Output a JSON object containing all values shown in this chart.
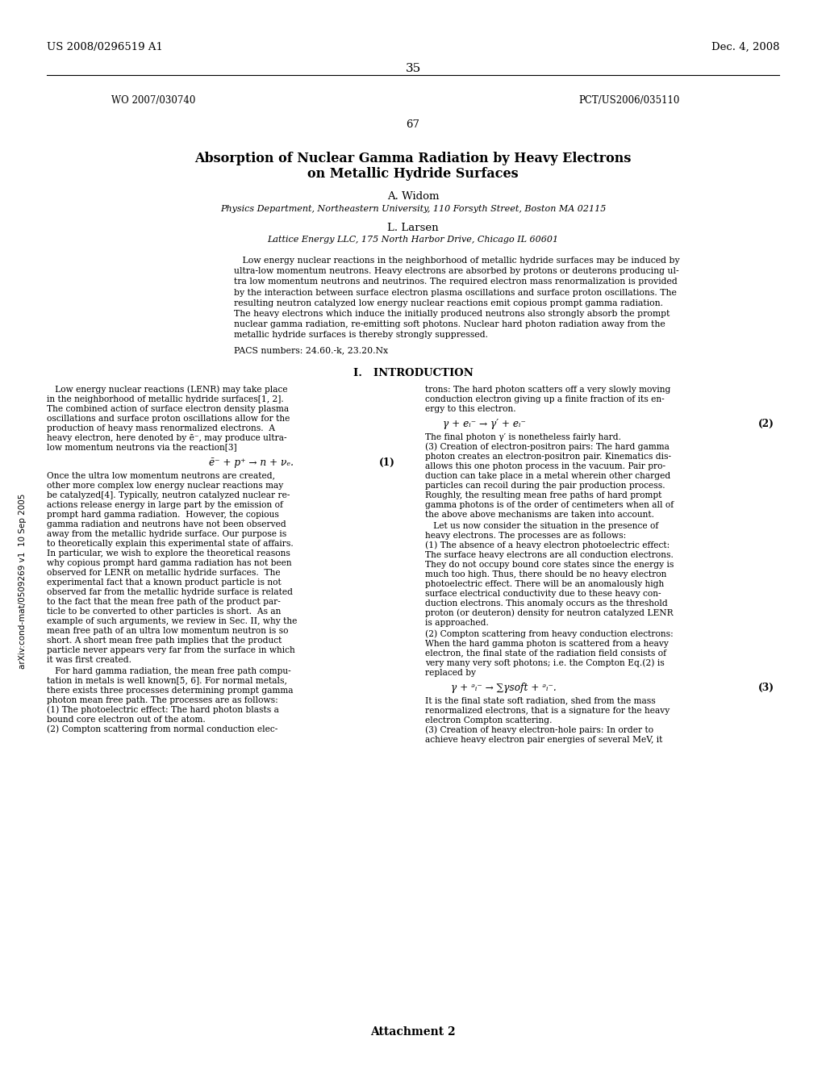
{
  "bg": "#ffffff",
  "header_left": "US 2008/0296519 A1",
  "header_right": "Dec. 4, 2008",
  "page_num_35": "35",
  "wo_left": "WO 2007/030740",
  "pct_right": "PCT/US2006/035110",
  "page_num_67": "67",
  "title_line1": "Absorption of Nuclear Gamma Radiation by Heavy Electrons",
  "title_line2": "on Metallic Hydride Surfaces",
  "author1": "A. Widom",
  "affil1": "Physics Department, Northeastern University, 110 Forsyth Street, Boston MA 02115",
  "author2": "L. Larsen",
  "affil2": "Lattice Energy LLC, 175 North Harbor Drive, Chicago IL 60601",
  "abstract_indent": "   Low energy nuclear reactions in the neighborhood of metallic hydride surfaces may be induced by\nultra-low momentum neutrons. Heavy electrons are absorbed by protons or deuterons producing ul-\ntra low momentum neutrons and neutrinos. The required electron mass renormalization is provided\nby the interaction between surface electron plasma oscillations and surface proton oscillations. The\nresulting neutron catalyzed low energy nuclear reactions emit copious prompt gamma radiation.\nThe heavy electrons which induce the initially produced neutrons also strongly absorb the prompt\nnuclear gamma radiation, re-emitting soft photons. Nuclear hard photon radiation away from the\nmetallic hydride surfaces is thereby strongly suppressed.",
  "pacs_line": "PACS numbers: 24.60.-k, 23.20.Nx",
  "section1_title": "I.   INTRODUCTION",
  "col1_para1_lines": [
    "   Low energy nuclear reactions (LENR) may take place",
    "in the neighborhood of metallic hydride surfaces[1, 2].",
    "The combined action of surface electron density plasma",
    "oscillations and surface proton oscillations allow for the",
    "production of heavy mass renormalized electrons.  A",
    "heavy electron, here denoted by ē⁻, may produce ultra-",
    "low momentum neutrons via the reaction[3]"
  ],
  "eq1_text": "ē⁻ + p⁺ → n + νₑ.",
  "eq1_num": "(1)",
  "col1_para2_lines": [
    "Once the ultra low momentum neutrons are created,",
    "other more complex low energy nuclear reactions may",
    "be catalyzed[4]. Typically, neutron catalyzed nuclear re-",
    "actions release energy in large part by the emission of",
    "prompt hard gamma radiation.  However, the copious",
    "gamma radiation and neutrons have not been observed",
    "away from the metallic hydride surface. Our purpose is",
    "to theoretically explain this experimental state of affairs.",
    "In particular, we wish to explore the theoretical reasons",
    "why copious prompt hard gamma radiation has not been",
    "observed for LENR on metallic hydride surfaces.  The",
    "experimental fact that a known product particle is not",
    "observed far from the metallic hydride surface is related",
    "to the fact that the mean free path of the product par-",
    "ticle to be converted to other particles is short.  As an",
    "example of such arguments, we review in Sec. II, why the",
    "mean free path of an ultra low momentum neutron is so",
    "short. A short mean free path implies that the product",
    "particle never appears very far from the surface in which",
    "it was first created."
  ],
  "col1_para3_lines": [
    "   For hard gamma radiation, the mean free path compu-",
    "tation in metals is well known[5, 6]. For normal metals,",
    "there exists three processes determining prompt gamma",
    "photon mean free path. The processes are as follows:",
    "(1) The photoelectric effect: The hard photon blasts a",
    "bound core electron out of the atom.",
    "(2) Compton scattering from normal conduction elec-"
  ],
  "col2_para1_lines": [
    "trons: The hard photon scatters off a very slowly moving",
    "conduction electron giving up a finite fraction of its en-",
    "ergy to this electron."
  ],
  "eq2_text": "γ + eᵢ⁻ → γ′ + eᵢ⁻",
  "eq2_num": "(2)",
  "col2_para2_lines": [
    "The final photon γ′ is nonetheless fairly hard.",
    "(3) Creation of electron-positron pairs: The hard gamma",
    "photon creates an electron-positron pair. Kinematics dis-",
    "allows this one photon process in the vacuum. Pair pro-",
    "duction can take place in a metal wherein other charged",
    "particles can recoil during the pair production process.",
    "Roughly, the resulting mean free paths of hard prompt",
    "gamma photons is of the order of centimeters when all of",
    "the above above mechanisms are taken into account."
  ],
  "col2_para3_lines": [
    "   Let us now consider the situation in the presence of",
    "heavy electrons. The processes are as follows:",
    "(1) The absence of a heavy electron photoelectric effect:",
    "The surface heavy electrons are all conduction electrons.",
    "They do not occupy bound core states since the energy is",
    "much too high. Thus, there should be no heavy electron",
    "photoelectric effect. There will be an anomalously high",
    "surface electrical conductivity due to these heavy con-",
    "duction electrons. This anomaly occurs as the threshold",
    "proton (or deuteron) density for neutron catalyzed LENR",
    "is approached."
  ],
  "col2_para4_lines": [
    "(2) Compton scattering from heavy conduction electrons:",
    "When the hard gamma photon is scattered from a heavy",
    "electron, the final state of the radiation field consists of",
    "very many very soft photons; i.e. the Compton Eq.(2) is",
    "replaced by"
  ],
  "eq3_text": "γ + ᵊᵢ⁻ → ∑γsoft + ᵊᵢ⁻.",
  "eq3_num": "(3)",
  "col2_para5_lines": [
    "It is the final state soft radiation, shed from the mass",
    "renormalized electrons, that is a signature for the heavy",
    "electron Compton scattering.",
    "(3) Creation of heavy electron-hole pairs: In order to",
    "achieve heavy electron pair energies of several MeV, it"
  ],
  "side_text": "arXiv:cond-mat/0509269 v1  10 Sep 2005",
  "attachment_text": "Attachment 2"
}
